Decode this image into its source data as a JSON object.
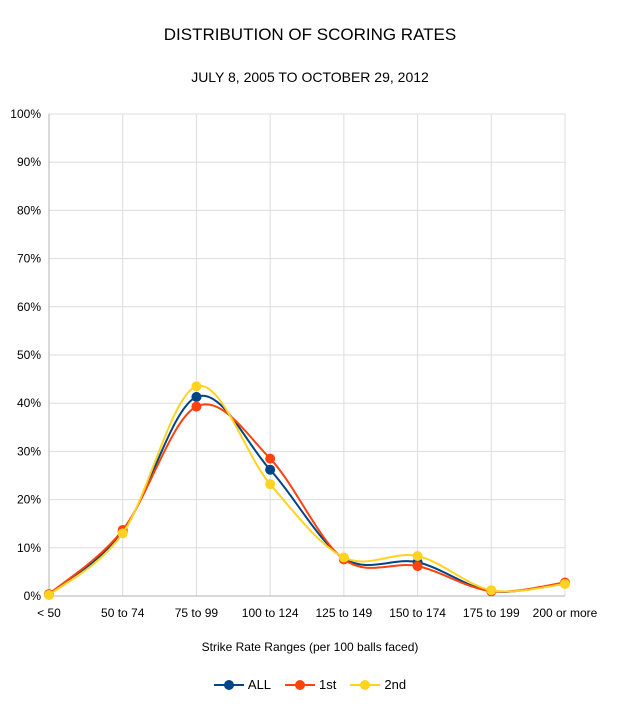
{
  "chart_data": {
    "type": "line",
    "title": "DISTRIBUTION OF SCORING RATES",
    "subtitle": "JULY 8, 2005 TO OCTOBER 29, 2012",
    "xlabel": "Strike Rate Ranges (per 100 balls faced)",
    "ylabel": "",
    "categories": [
      "< 50",
      "50 to 74",
      "75 to 99",
      "100 to 124",
      "125 to 149",
      "150 to 174",
      "175 to 199",
      "200 or more"
    ],
    "ylim": [
      0,
      100
    ],
    "yticks": [
      0,
      10,
      20,
      30,
      40,
      50,
      60,
      70,
      80,
      90,
      100
    ],
    "ytick_labels": [
      "0%",
      "10%",
      "20%",
      "30%",
      "40%",
      "50%",
      "60%",
      "70%",
      "80%",
      "90%",
      "100%"
    ],
    "grid": true,
    "smooth": true,
    "legend_position": "bottom",
    "series": [
      {
        "name": "ALL",
        "color": "#004586",
        "values": [
          0.3,
          13.3,
          41.3,
          26.2,
          7.8,
          7.0,
          1.0,
          2.7
        ]
      },
      {
        "name": "1st",
        "color": "#ff420e",
        "values": [
          0.4,
          13.7,
          39.3,
          28.5,
          7.6,
          6.2,
          1.0,
          2.8
        ]
      },
      {
        "name": "2nd",
        "color": "#ffd320",
        "values": [
          0.2,
          13.0,
          43.5,
          23.2,
          8.0,
          8.3,
          1.2,
          2.5
        ]
      }
    ]
  }
}
